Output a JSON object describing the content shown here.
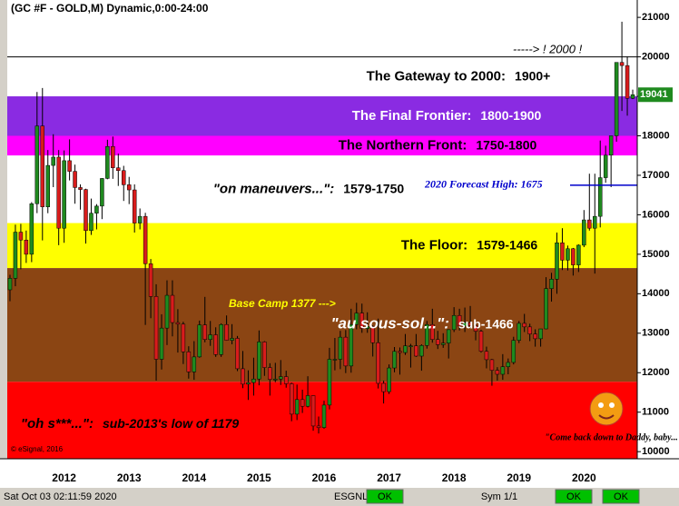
{
  "chart_data": {
    "type": "candlestick",
    "title": "(GC #F - GOLD,M) Dynamic,0:00-24:00",
    "categories": [
      null,
      null,
      null,
      null,
      null,
      null,
      null,
      null,
      null,
      null,
      "2012",
      null,
      null,
      null,
      null,
      null,
      null,
      null,
      null,
      null,
      null,
      null,
      "2013",
      null,
      null,
      null,
      null,
      null,
      null,
      null,
      null,
      null,
      null,
      null,
      "2014",
      null,
      null,
      null,
      null,
      null,
      null,
      null,
      null,
      null,
      null,
      null,
      "2015",
      null,
      null,
      null,
      null,
      null,
      null,
      null,
      null,
      null,
      null,
      null,
      "2016",
      null,
      null,
      null,
      null,
      null,
      null,
      null,
      null,
      null,
      null,
      null,
      "2017",
      null,
      null,
      null,
      null,
      null,
      null,
      null,
      null,
      null,
      null,
      null,
      "2018",
      null,
      null,
      null,
      null,
      null,
      null,
      null,
      null,
      null,
      null,
      null,
      "2019",
      null,
      null,
      null,
      null,
      null,
      null,
      null,
      null,
      null,
      null,
      null,
      "2020",
      null,
      null,
      null,
      null,
      null,
      null,
      null,
      null,
      null
    ],
    "open": [
      14100,
      14390,
      15560,
      15360,
      15000,
      16280,
      18250,
      16200,
      17250,
      17460,
      15660,
      17370,
      17100,
      16690,
      16640,
      15600,
      16040,
      16220,
      16920,
      17730,
      17190,
      17120,
      16760,
      16630,
      15790,
      15960,
      14760,
      13930,
      12340,
      13130,
      13960,
      13270,
      13230,
      12530,
      12020,
      12400,
      13210,
      12840,
      12960,
      12460,
      13220,
      12820,
      12870,
      12100,
      11710,
      11750,
      11840,
      12780,
      12130,
      11830,
      11840,
      11900,
      11720,
      10950,
      11320,
      11150,
      11420,
      10650,
      10610,
      11180,
      12340,
      12340,
      12900,
      12170,
      13220,
      13510,
      13120,
      13170,
      12760,
      11730,
      11520,
      12120,
      12540,
      12510,
      12680,
      12680,
      12420,
      12690,
      13220,
      12840,
      12710,
      12750,
      13090,
      13450,
      13180,
      13270,
      13190,
      13050,
      12540,
      12330,
      12060,
      11960,
      12150,
      12260,
      12820,
      13250,
      13160,
      12980,
      12860,
      13110,
      14130,
      14370,
      15290,
      14850,
      15140,
      14730,
      15230,
      15870,
      15660,
      15960,
      16940,
      17510,
      18000,
      19860,
      19780,
      18950
    ],
    "high": [
      14480,
      15750,
      15770,
      15600,
      16320,
      19110,
      19210,
      17640,
      18040,
      17640,
      17630,
      17910,
      17270,
      16770,
      16660,
      16410,
      16270,
      16930,
      17900,
      17980,
      17550,
      17240,
      16960,
      16770,
      16160,
      16050,
      14880,
      14240,
      13480,
      14340,
      14340,
      13610,
      13290,
      12670,
      12800,
      13320,
      13920,
      13310,
      13150,
      13250,
      13450,
      13230,
      12930,
      12550,
      12060,
      12380,
      13070,
      12800,
      12240,
      12250,
      12320,
      12050,
      11750,
      11700,
      11570,
      11910,
      11430,
      10890,
      11290,
      12630,
      12880,
      13060,
      13080,
      13620,
      13770,
      13750,
      13530,
      13200,
      13370,
      11800,
      12210,
      12650,
      12640,
      12980,
      12730,
      12980,
      12720,
      13310,
      13620,
      13060,
      13000,
      13100,
      13660,
      13620,
      13650,
      13690,
      13260,
      13090,
      12660,
      12350,
      12140,
      12470,
      12360,
      12910,
      13310,
      13490,
      13240,
      13100,
      13110,
      14420,
      14530,
      15550,
      15660,
      15220,
      15160,
      15250,
      16120,
      17040,
      17040,
      17880,
      17750,
      18000,
      19860,
      20890,
      20010,
      19170
    ],
    "low": [
      13810,
      14190,
      14620,
      14780,
      14800,
      16040,
      15350,
      16040,
      16700,
      15230,
      15290,
      16870,
      16280,
      16130,
      15270,
      15490,
      15630,
      15890,
      16900,
      16910,
      16730,
      16350,
      16270,
      15550,
      15630,
      13210,
      13380,
      11800,
      12080,
      12700,
      12920,
      12510,
      12220,
      11850,
      11820,
      12380,
      12770,
      12680,
      12400,
      12400,
      12810,
      12720,
      12040,
      11610,
      11310,
      11420,
      11680,
      11920,
      11420,
      11760,
      11690,
      11620,
      10770,
      10800,
      10980,
      11120,
      10530,
      10460,
      10580,
      11070,
      12060,
      12090,
      11990,
      12000,
      13100,
      13010,
      13010,
      12410,
      11600,
      11220,
      11460,
      12010,
      11950,
      12450,
      12130,
      12400,
      12050,
      12610,
      12760,
      12600,
      12630,
      12360,
      13030,
      13070,
      13030,
      13140,
      12820,
      12510,
      12110,
      11670,
      11800,
      11820,
      11960,
      12210,
      12750,
      13030,
      12800,
      12660,
      12660,
      13100,
      13800,
      14000,
      14600,
      14590,
      14460,
      14550,
      15180,
      15600,
      14510,
      15680,
      16810,
      16700,
      17850,
      18630,
      18510,
      18930
    ],
    "close": [
      14390,
      15560,
      15360,
      15000,
      16280,
      18250,
      16200,
      17250,
      17460,
      15660,
      17370,
      17100,
      16690,
      16640,
      15600,
      16040,
      16220,
      16920,
      17730,
      17190,
      17120,
      16760,
      16630,
      15790,
      15960,
      14760,
      13930,
      12340,
      13130,
      13960,
      13270,
      13230,
      12530,
      12020,
      12400,
      13210,
      12840,
      12960,
      12460,
      13220,
      12820,
      12870,
      12100,
      11710,
      11750,
      11840,
      12780,
      12130,
      11830,
      11840,
      11900,
      11720,
      10950,
      11320,
      11150,
      11420,
      10650,
      10610,
      11180,
      12340,
      12340,
      12900,
      12170,
      13220,
      13510,
      13120,
      13170,
      12760,
      11730,
      11520,
      12120,
      12540,
      12510,
      12680,
      12680,
      12420,
      12690,
      13220,
      12840,
      12710,
      12750,
      13090,
      13450,
      13180,
      13270,
      13190,
      13050,
      12540,
      12330,
      12060,
      11960,
      12150,
      12260,
      12820,
      13250,
      13160,
      12980,
      12860,
      13110,
      14130,
      14370,
      15290,
      14850,
      15140,
      14730,
      15230,
      15870,
      15660,
      15960,
      16940,
      17510,
      18000,
      19860,
      19780,
      18950,
      19041
    ],
    "up_color": "#1f8a1f",
    "down_color": "#d81c1c",
    "ylim": [
      9820,
      21440
    ],
    "yticks": [
      10000,
      11000,
      12000,
      13000,
      14000,
      15000,
      16000,
      17000,
      18000,
      19000,
      20000,
      21000
    ],
    "last_price": 19041,
    "bands": [
      {
        "from": 19000,
        "to": 20000,
        "color": "#ffffff",
        "label": "The Gateway to 2000:",
        "range": "1900+"
      },
      {
        "from": 18000,
        "to": 19000,
        "color": "#8a2be2",
        "label": "The Final Frontier:",
        "range": "1800-1900"
      },
      {
        "from": 17500,
        "to": 18000,
        "color": "#ff00ff",
        "label": "The Northern Front:",
        "range": "1750-1800"
      },
      {
        "from": 15790,
        "to": 17500,
        "color": "#ffffff",
        "label": "\"on maneuvers...\":",
        "range": "1579-1750"
      },
      {
        "from": 14650,
        "to": 15790,
        "color": "#ffff00",
        "label": "The Floor:",
        "range": "1579-1466"
      },
      {
        "from": 11770,
        "to": 14650,
        "color": "#8b4513",
        "label": "\"au sous-sol...\":",
        "range": "sub-1466"
      },
      {
        "from": 9820,
        "to": 11770,
        "color": "#ff0000",
        "label": "\"oh s***...\":",
        "range": "sub-2013's low of 1179"
      }
    ],
    "annotations": {
      "target": "-----> ! 2000 !",
      "forecast": "2020 Forecast High:  1675",
      "forecast_level": 16750,
      "base_camp": "Base Camp 1377 --->",
      "cartoon": "\"Come back down to Daddy, baby...\"",
      "copyright": "© eSignal, 2016"
    }
  },
  "status_bar": {
    "time": "Sat Oct 03 02:11:59 2020",
    "feed": "ESGNL:",
    "feed_status": "OK",
    "symbol": "Sym 1/1",
    "status_2": "OK",
    "status_3": "OK"
  }
}
